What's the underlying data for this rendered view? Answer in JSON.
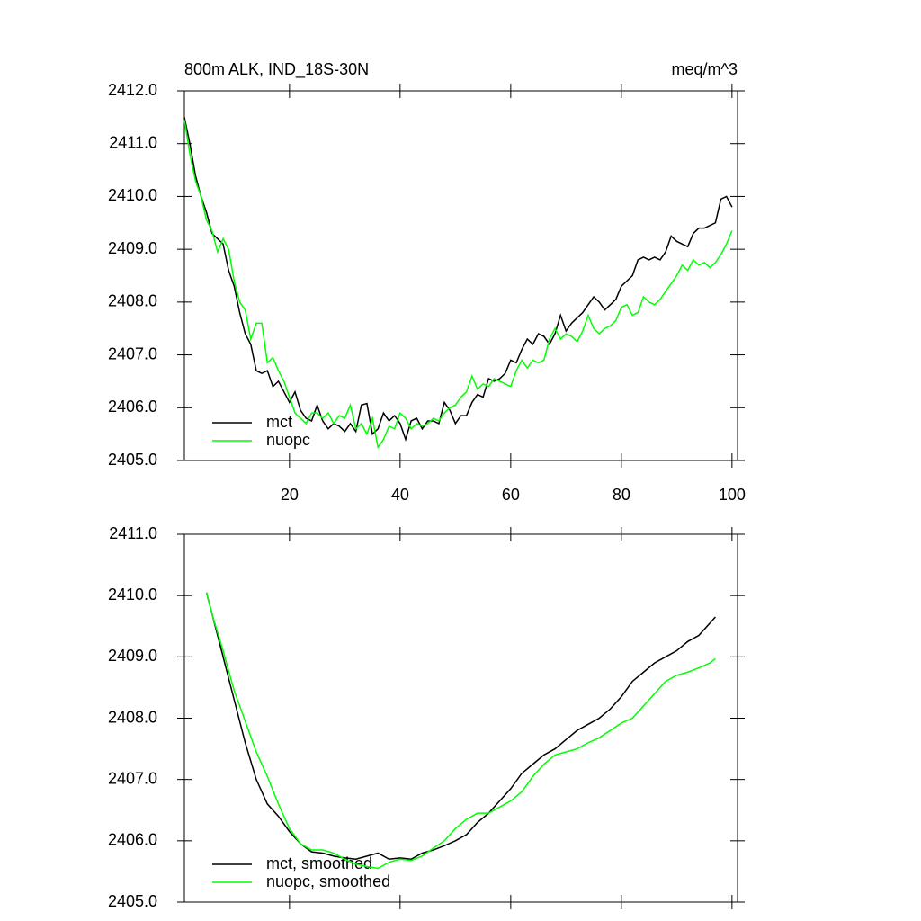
{
  "chart_data": [
    {
      "type": "line",
      "title": "800m ALK, IND_18S-30N",
      "units": "meq/m^3",
      "x": [
        1,
        2,
        3,
        4,
        5,
        6,
        7,
        8,
        9,
        10,
        11,
        12,
        13,
        14,
        15,
        16,
        17,
        18,
        19,
        20,
        21,
        22,
        23,
        24,
        25,
        26,
        27,
        28,
        29,
        30,
        31,
        32,
        33,
        34,
        35,
        36,
        37,
        38,
        39,
        40,
        41,
        42,
        43,
        44,
        45,
        46,
        47,
        48,
        49,
        50,
        51,
        52,
        53,
        54,
        55,
        56,
        57,
        58,
        59,
        60,
        61,
        62,
        63,
        64,
        65,
        66,
        67,
        68,
        69,
        70,
        71,
        72,
        73,
        74,
        75,
        76,
        77,
        78,
        79,
        80,
        81,
        82,
        83,
        84,
        85,
        86,
        87,
        88,
        89,
        90,
        91,
        92,
        93,
        94,
        95,
        96,
        97,
        98,
        99,
        100
      ],
      "series": [
        {
          "name": "mct",
          "color": "#000000",
          "values": [
            2411.5,
            2411.0,
            2410.4,
            2410.0,
            2409.7,
            2409.3,
            2409.2,
            2409.1,
            2408.6,
            2408.3,
            2407.8,
            2407.4,
            2407.2,
            2406.7,
            2406.65,
            2406.7,
            2406.4,
            2406.5,
            2406.3,
            2406.1,
            2406.3,
            2405.95,
            2405.8,
            2405.75,
            2406.05,
            2405.75,
            2405.6,
            2405.7,
            2405.65,
            2405.55,
            2405.7,
            2405.55,
            2406.05,
            2406.08,
            2405.5,
            2405.6,
            2405.9,
            2405.75,
            2405.85,
            2405.7,
            2405.4,
            2405.75,
            2405.8,
            2405.6,
            2405.75,
            2405.75,
            2405.7,
            2406.1,
            2405.95,
            2405.7,
            2405.85,
            2405.85,
            2406.1,
            2406.25,
            2406.2,
            2406.55,
            2406.5,
            2406.55,
            2406.65,
            2406.9,
            2406.85,
            2407.1,
            2407.3,
            2407.2,
            2407.4,
            2407.35,
            2407.2,
            2407.4,
            2407.75,
            2407.45,
            2407.6,
            2407.7,
            2407.8,
            2407.95,
            2408.1,
            2408.0,
            2407.85,
            2407.95,
            2408.05,
            2408.3,
            2408.4,
            2408.5,
            2408.8,
            2408.85,
            2408.8,
            2408.85,
            2408.8,
            2408.95,
            2409.25,
            2409.15,
            2409.1,
            2409.05,
            2409.3,
            2409.4,
            2409.4,
            2409.45,
            2409.5,
            2409.95,
            2410.0,
            2409.8
          ]
        },
        {
          "name": "nuopc",
          "color": "#00ff00",
          "values": [
            2411.45,
            2410.8,
            2410.3,
            2410.0,
            2409.55,
            2409.35,
            2408.95,
            2409.2,
            2409.0,
            2408.4,
            2408.0,
            2407.85,
            2407.3,
            2407.6,
            2407.6,
            2406.85,
            2406.95,
            2406.7,
            2406.5,
            2406.2,
            2405.9,
            2405.8,
            2405.7,
            2405.9,
            2405.9,
            2405.8,
            2405.9,
            2405.7,
            2405.85,
            2405.8,
            2406.05,
            2405.6,
            2405.7,
            2405.5,
            2405.8,
            2405.25,
            2405.4,
            2405.65,
            2405.6,
            2405.9,
            2405.8,
            2405.6,
            2405.7,
            2405.65,
            2405.7,
            2405.8,
            2405.75,
            2405.9,
            2406.0,
            2406.05,
            2406.2,
            2406.3,
            2406.6,
            2406.35,
            2406.45,
            2406.4,
            2406.55,
            2406.5,
            2406.45,
            2406.4,
            2406.7,
            2406.9,
            2406.75,
            2406.9,
            2406.85,
            2406.9,
            2407.3,
            2407.5,
            2407.3,
            2407.4,
            2407.35,
            2407.25,
            2407.45,
            2407.75,
            2407.5,
            2407.4,
            2407.5,
            2407.55,
            2407.65,
            2407.9,
            2407.95,
            2407.75,
            2407.8,
            2408.1,
            2408.0,
            2407.95,
            2408.05,
            2408.2,
            2408.35,
            2408.5,
            2408.7,
            2408.6,
            2408.8,
            2408.7,
            2408.75,
            2408.65,
            2408.75,
            2408.9,
            2409.1,
            2409.35
          ]
        }
      ],
      "xlim": [
        1,
        101
      ],
      "xticks": [
        20,
        40,
        60,
        80,
        100
      ],
      "xtick_labels": true,
      "ylim": [
        2405,
        2412
      ],
      "yticks": [
        {
          "value": 2405,
          "label": "2405.0"
        },
        {
          "value": 2406,
          "label": "2406.0"
        },
        {
          "value": 2407,
          "label": "2407.0"
        },
        {
          "value": 2408,
          "label": "2408.0"
        },
        {
          "value": 2409,
          "label": "2409.0"
        },
        {
          "value": 2410,
          "label": "2410.0"
        },
        {
          "value": 2411,
          "label": "2411.0"
        },
        {
          "value": 2412,
          "label": "2412.0"
        }
      ],
      "legend": "lower left"
    },
    {
      "type": "line",
      "x": [
        5,
        6,
        8,
        10,
        12,
        14,
        16,
        18,
        20,
        22,
        24,
        26,
        28,
        30,
        32,
        34,
        36,
        38,
        40,
        42,
        44,
        46,
        48,
        50,
        52,
        54,
        56,
        58,
        60,
        62,
        64,
        66,
        68,
        70,
        72,
        74,
        76,
        78,
        80,
        82,
        84,
        86,
        88,
        90,
        92,
        94,
        96,
        97
      ],
      "series": [
        {
          "name": "mct, smoothed",
          "color": "#000000",
          "values": [
            2410.05,
            2409.7,
            2409.0,
            2408.3,
            2407.6,
            2407.0,
            2406.6,
            2406.4,
            2406.15,
            2405.95,
            2405.82,
            2405.8,
            2405.75,
            2405.72,
            2405.7,
            2405.75,
            2405.8,
            2405.7,
            2405.72,
            2405.7,
            2405.8,
            2405.85,
            2405.92,
            2406.0,
            2406.1,
            2406.3,
            2406.45,
            2406.65,
            2406.85,
            2407.1,
            2407.25,
            2407.4,
            2407.5,
            2407.65,
            2407.8,
            2407.9,
            2408.0,
            2408.15,
            2408.35,
            2408.6,
            2408.75,
            2408.9,
            2409.0,
            2409.1,
            2409.25,
            2409.35,
            2409.55,
            2409.65
          ]
        },
        {
          "name": "nuopc, smoothed",
          "color": "#00ff00",
          "values": [
            2410.05,
            2409.7,
            2409.1,
            2408.45,
            2407.95,
            2407.45,
            2407.05,
            2406.6,
            2406.2,
            2405.95,
            2405.85,
            2405.85,
            2405.8,
            2405.7,
            2405.62,
            2405.58,
            2405.55,
            2405.65,
            2405.7,
            2405.68,
            2405.75,
            2405.88,
            2406.0,
            2406.2,
            2406.35,
            2406.45,
            2406.45,
            2406.55,
            2406.65,
            2406.8,
            2407.05,
            2407.25,
            2407.4,
            2407.45,
            2407.5,
            2407.6,
            2407.68,
            2407.8,
            2407.92,
            2408.0,
            2408.2,
            2408.4,
            2408.6,
            2408.7,
            2408.75,
            2408.82,
            2408.9,
            2408.97
          ]
        }
      ],
      "xlim": [
        1,
        101
      ],
      "xticks": [
        20,
        40,
        60,
        80,
        100
      ],
      "xtick_labels": false,
      "ylim": [
        2405,
        2411
      ],
      "yticks": [
        {
          "value": 2405,
          "label": "2405.0"
        },
        {
          "value": 2406,
          "label": "2406.0"
        },
        {
          "value": 2407,
          "label": "2407.0"
        },
        {
          "value": 2408,
          "label": "2408.0"
        },
        {
          "value": 2409,
          "label": "2409.0"
        },
        {
          "value": 2410,
          "label": "2410.0"
        },
        {
          "value": 2411,
          "label": "2411.0"
        }
      ],
      "legend": "lower left"
    }
  ]
}
